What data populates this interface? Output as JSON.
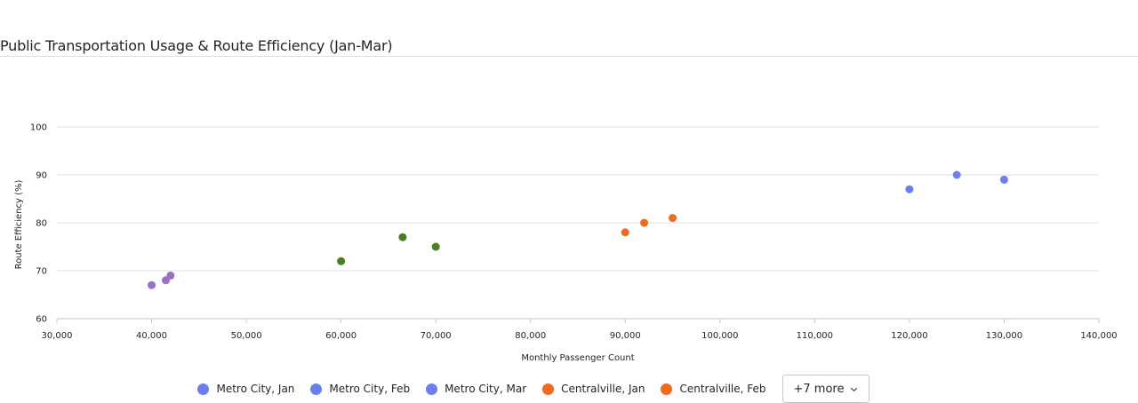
{
  "title": "Public Transportation Usage & Route Efficiency (Jan-Mar)",
  "chart_data": {
    "type": "scatter",
    "title": "Public Transportation Usage & Route Efficiency (Jan-Mar)",
    "xlabel": "Monthly Passenger Count",
    "ylabel": "Route Efficiency (%)",
    "xlim": [
      30000,
      140000
    ],
    "ylim": [
      60,
      100
    ],
    "x_ticks": [
      30000,
      40000,
      50000,
      60000,
      70000,
      80000,
      90000,
      100000,
      110000,
      120000,
      130000,
      140000
    ],
    "x_tick_labels": [
      "30,000",
      "40,000",
      "50,000",
      "60,000",
      "70,000",
      "80,000",
      "90,000",
      "100,000",
      "110,000",
      "120,000",
      "130,000",
      "140,000"
    ],
    "y_ticks": [
      60,
      70,
      80,
      90,
      100
    ],
    "y_tick_labels": [
      "60",
      "70",
      "80",
      "90",
      "100"
    ],
    "grid": true,
    "legend_position": "bottom",
    "series": [
      {
        "name": "Metro City, Jan",
        "color": "#6b7ff0",
        "points": [
          [
            120000,
            87
          ]
        ]
      },
      {
        "name": "Metro City, Feb",
        "color": "#6b7ff0",
        "points": [
          [
            125000,
            90
          ]
        ]
      },
      {
        "name": "Metro City, Mar",
        "color": "#6b7ff0",
        "points": [
          [
            130000,
            89
          ]
        ]
      },
      {
        "name": "Centralville, Jan",
        "color": "#f26b1d",
        "points": [
          [
            90000,
            78
          ]
        ]
      },
      {
        "name": "Centralville, Feb",
        "color": "#f26b1d",
        "points": [
          [
            92000,
            80
          ]
        ]
      },
      {
        "color": "#f26b1d",
        "points": [
          [
            95000,
            81
          ]
        ]
      },
      {
        "color": "#4a7f1e",
        "points": [
          [
            60000,
            72
          ]
        ]
      },
      {
        "color": "#4a7f1e",
        "points": [
          [
            66500,
            77
          ]
        ]
      },
      {
        "color": "#4a7f1e",
        "points": [
          [
            70000,
            75
          ]
        ]
      },
      {
        "color": "#9b6fc4",
        "points": [
          [
            40000,
            67
          ]
        ]
      },
      {
        "color": "#9b6fc4",
        "points": [
          [
            41500,
            68
          ]
        ]
      },
      {
        "color": "#9b6fc4",
        "points": [
          [
            42000,
            69
          ]
        ]
      }
    ]
  },
  "legend": {
    "items": [
      {
        "label": "Metro City, Jan",
        "color": "#6b7ff0"
      },
      {
        "label": "Metro City, Feb",
        "color": "#6b7ff0"
      },
      {
        "label": "Metro City, Mar",
        "color": "#6b7ff0"
      },
      {
        "label": "Centralville, Jan",
        "color": "#f26b1d"
      },
      {
        "label": "Centralville, Feb",
        "color": "#f26b1d"
      }
    ],
    "more_label": "+7 more",
    "more_icon": "chevron-down-icon"
  }
}
